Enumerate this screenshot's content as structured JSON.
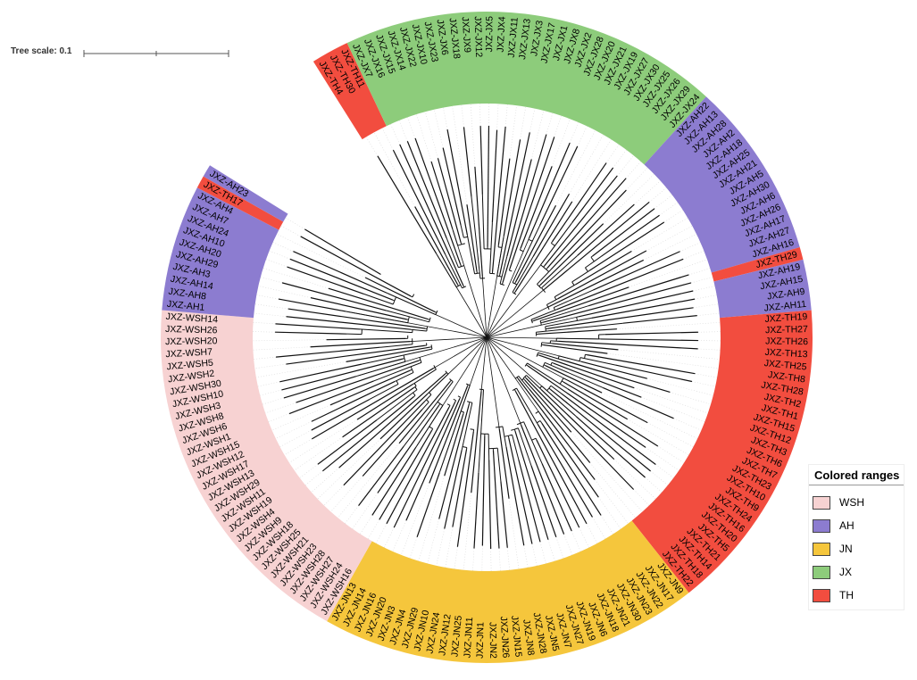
{
  "tree_scale": {
    "label": "Tree scale: 0.1"
  },
  "legend": {
    "title": "Colored ranges",
    "items": [
      {
        "label": "WSH",
        "color": "#f7d2d2"
      },
      {
        "label": "AH",
        "color": "#8c7cd0"
      },
      {
        "label": "JN",
        "color": "#f5c63c"
      },
      {
        "label": "JX",
        "color": "#8dcc7b"
      },
      {
        "label": "TH",
        "color": "#f24d3f"
      }
    ]
  },
  "groups": [
    {
      "name": "TH",
      "color": "#f24d3f",
      "leaves": [
        "JXZ-TH4",
        "JXZ-TH30",
        "JXZ-TH11"
      ]
    },
    {
      "name": "JX",
      "color": "#8dcc7b",
      "leaves": [
        "JXZ-JX7",
        "JXZ-JX16",
        "JXZ-JX15",
        "JXZ-JX14",
        "JXZ-JX22",
        "JXZ-JX10",
        "JXZ-JX23",
        "JXZ-JX6",
        "JXZ-JX18",
        "JXZ-JX9",
        "JXZ-JX12",
        "JXZ-JX5",
        "JXZ-JX4",
        "JXZ-JX11",
        "JXZ-JX13",
        "JXZ-JX3",
        "JXZ-JX17",
        "JXZ-JX1",
        "JXZ-JX8",
        "JXZ-JX2",
        "JXZ-JX28",
        "JXZ-JX20",
        "JXZ-JX21",
        "JXZ-JX19",
        "JXZ-JX27",
        "JXZ-JX30",
        "JXZ-JX25",
        "JXZ-JX26",
        "JXZ-JX29",
        "JXZ-JX24"
      ]
    },
    {
      "name": "AH",
      "color": "#8c7cd0",
      "leaves": [
        "JXZ-AH22",
        "JXZ-AH13",
        "JXZ-AH28",
        "JXZ-AH2",
        "JXZ-AH18",
        "JXZ-AH25",
        "JXZ-AH21",
        "JXZ-AH5",
        "JXZ-AH30",
        "JXZ-AH6",
        "JXZ-AH26",
        "JXZ-AH17",
        "JXZ-AH27",
        "JXZ-AH16"
      ]
    },
    {
      "name": "TH",
      "color": "#f24d3f",
      "leaves": [
        "JXZ-TH29"
      ]
    },
    {
      "name": "AH",
      "color": "#8c7cd0",
      "leaves": [
        "JXZ-AH19",
        "JXZ-AH15",
        "JXZ-AH9",
        "JXZ-AH11"
      ]
    },
    {
      "name": "TH",
      "color": "#f24d3f",
      "leaves": [
        "JXZ-TH19",
        "JXZ-TH27",
        "JXZ-TH26",
        "JXZ-TH13",
        "JXZ-TH25",
        "JXZ-TH8",
        "JXZ-TH28",
        "JXZ-TH2",
        "JXZ-TH1",
        "JXZ-TH15",
        "JXZ-TH12",
        "JXZ-TH3",
        "JXZ-TH6",
        "JXZ-TH7",
        "JXZ-TH23",
        "JXZ-TH10",
        "JXZ-TH9",
        "JXZ-TH24",
        "JXZ-TH16",
        "JXZ-TH20",
        "JXZ-TH5",
        "JXZ-TH21",
        "JXZ-TH14",
        "JXZ-TH18",
        "JXZ-TH22"
      ]
    },
    {
      "name": "JN",
      "color": "#f5c63c",
      "leaves": [
        "JXZ-JN9",
        "JXZ-JN17",
        "JXZ-JN22",
        "JXZ-JN23",
        "JXZ-JN30",
        "JXZ-JN21",
        "JXZ-JN18",
        "JXZ-JN6",
        "JXZ-JN19",
        "JXZ-JN27",
        "JXZ-JN7",
        "JXZ-JN5",
        "JXZ-JN28",
        "JXZ-JN8",
        "JXZ-JN15",
        "JXZ-JN26",
        "JXZ-JN2",
        "JXZ-JN1",
        "JXZ-JN11",
        "JXZ-JN25",
        "JXZ-JN12",
        "JXZ-JN24",
        "JXZ-JN10",
        "JXZ-JN29",
        "JXZ-JN4",
        "JXZ-JN3",
        "JXZ-JN20",
        "JXZ-JN16",
        "JXZ-JN14",
        "JXZ-JN13"
      ]
    },
    {
      "name": "WSH",
      "color": "#f7d2d2",
      "leaves": [
        "JXZ-WSH16",
        "JXZ-WSH24",
        "JXZ-WSH27",
        "JXZ-WSH28",
        "JXZ-WSH23",
        "JXZ-WSH21",
        "JXZ-WSH25",
        "JXZ-WSH18",
        "JXZ-WSH9",
        "JXZ-WSH4",
        "JXZ-WSH19",
        "JXZ-WSH11",
        "JXZ-WSH29",
        "JXZ-WSH13",
        "JXZ-WSH17",
        "JXZ-WSH12",
        "JXZ-WSH15",
        "JXZ-WSH1",
        "JXZ-WSH6",
        "JXZ-WSH8",
        "JXZ-WSH3",
        "JXZ-WSH10",
        "JXZ-WSH30",
        "JXZ-WSH2",
        "JXZ-WSH5",
        "JXZ-WSH7",
        "JXZ-WSH20",
        "JXZ-WSH26",
        "JXZ-WSH14"
      ]
    },
    {
      "name": "AH",
      "color": "#8c7cd0",
      "leaves": [
        "JXZ-AH1",
        "JXZ-AH8",
        "JXZ-AH14",
        "JXZ-AH3",
        "JXZ-AH29",
        "JXZ-AH20",
        "JXZ-AH10",
        "JXZ-AH24",
        "JXZ-AH7",
        "JXZ-AH4"
      ]
    },
    {
      "name": "TH",
      "color": "#f24d3f",
      "leaves": [
        "JXZ-TH17"
      ]
    },
    {
      "name": "AH",
      "color": "#8c7cd0",
      "leaves": [
        "JXZ-AH23"
      ]
    }
  ]
}
